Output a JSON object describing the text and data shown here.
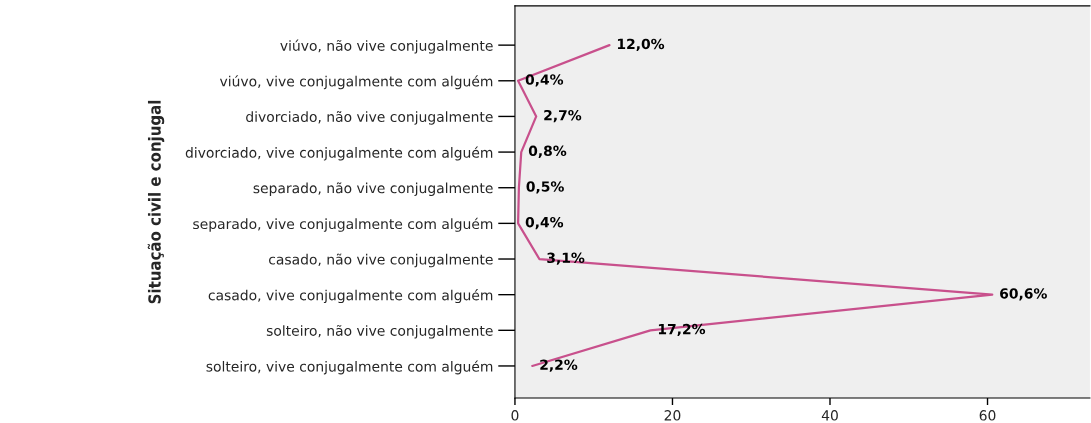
{
  "chart_data": {
    "type": "line",
    "orientation": "horizontal",
    "ylabel": "Situação civil e conjugal",
    "categories": [
      "viúvo, não vive conjugalmente",
      "viúvo, vive conjugalmente com alguém",
      "divorciado, não vive conjugalmente",
      "divorciado, vive conjugalmente com alguém",
      "separado, não vive conjugalmente",
      "separado, vive conjugalmente com alguém",
      "casado, não vive conjugalmente",
      "casado, vive conjugalmente com alguém",
      "solteiro, não vive conjugalmente",
      "solteiro, vive conjugalmente com alguém"
    ],
    "series": [
      {
        "color": "#c8508c",
        "values": [
          12.0,
          0.4,
          2.7,
          0.8,
          0.5,
          0.4,
          3.1,
          60.6,
          17.2,
          2.2
        ],
        "value_labels": [
          "12,0%",
          "0,4%",
          "2,7%",
          "0,8%",
          "0,5%",
          "0,4%",
          "3,1%",
          "60,6%",
          "17,2%",
          "2,2%"
        ]
      }
    ],
    "xlim": [
      0,
      73
    ],
    "xticks": [
      0,
      20,
      40,
      60
    ],
    "grid": false,
    "marker": "none",
    "line_style": "solid"
  }
}
